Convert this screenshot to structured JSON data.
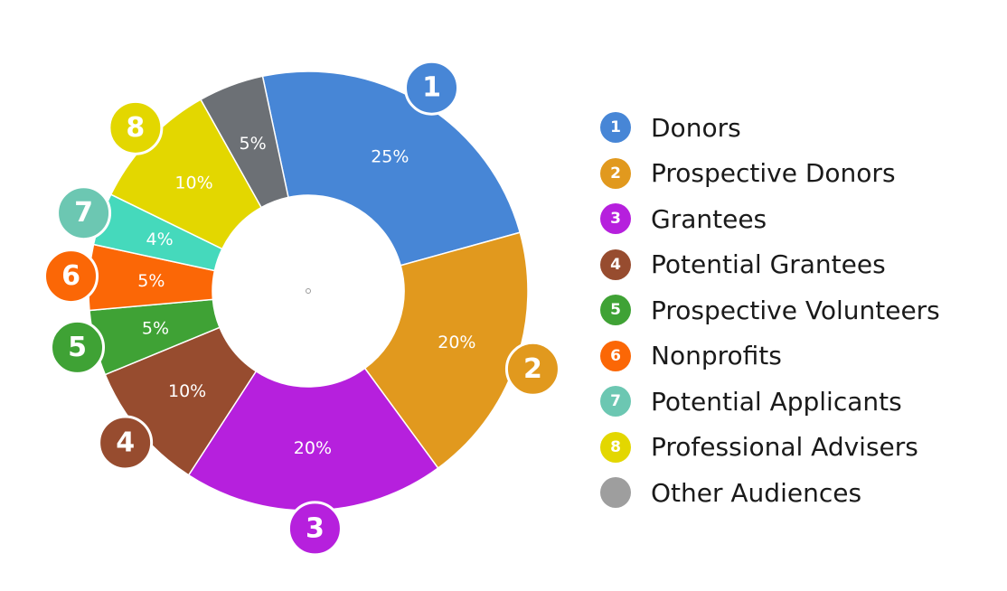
{
  "chart_data": {
    "type": "pie",
    "variant": "donut",
    "title": "",
    "legend_position": "right",
    "slices": [
      {
        "badge": "1",
        "label": "Donors",
        "value": 25,
        "value_label": "25%",
        "color": "#4786D6"
      },
      {
        "badge": "2",
        "label": "Prospective Donors",
        "value": 20,
        "value_label": "20%",
        "color": "#E1991E"
      },
      {
        "badge": "3",
        "label": "Grantees",
        "value": 20,
        "value_label": "20%",
        "color": "#B620DD"
      },
      {
        "badge": "4",
        "label": "Potential Grantees",
        "value": 10,
        "value_label": "10%",
        "color": "#974C2F"
      },
      {
        "badge": "5",
        "label": "Prospective Volunteers",
        "value": 5,
        "value_label": "5%",
        "color": "#3FA235"
      },
      {
        "badge": "6",
        "label": "Nonprofits",
        "value": 5,
        "value_label": "5%",
        "color": "#FB6706"
      },
      {
        "badge": "7",
        "label": "Potential Applicants",
        "value": 4,
        "value_label": "4%",
        "color": "#45D9BC"
      },
      {
        "badge": "8",
        "label": "Professional Advisers",
        "value": 10,
        "value_label": "10%",
        "color": "#E3D700"
      },
      {
        "badge": "",
        "label": "Other Audiences",
        "value": 5,
        "value_label": "5%",
        "color": "#6C7075"
      }
    ]
  },
  "legend_swatch_colors": [
    "#4786D6",
    "#E1991E",
    "#B620DD",
    "#974C2F",
    "#3FA235",
    "#FB6706",
    "#6CC7B2",
    "#E3D700",
    "#9E9E9E"
  ],
  "badge_colors": [
    "#4786D6",
    "#E1991E",
    "#B620DD",
    "#974C2F",
    "#3FA235",
    "#FB6706",
    "#6CC7B2",
    "#E3D700",
    ""
  ]
}
